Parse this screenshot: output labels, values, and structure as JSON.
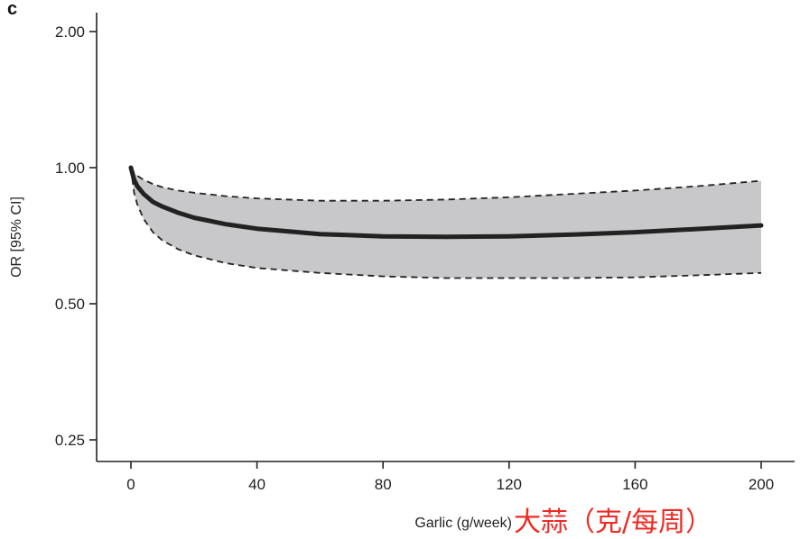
{
  "panel_label": "c",
  "annotation": "大蒜（克/每周）",
  "colors": {
    "line": "#222222",
    "band": "#c8c7c9",
    "ci": "#222222",
    "axis": "#222222",
    "annotation": "#ee2a24"
  },
  "chart_data": {
    "type": "line",
    "xlabel": "Garlic (g/week)",
    "ylabel": "OR [95% CI]",
    "y_scale": "log",
    "xlim": [
      -10,
      210
    ],
    "ylim": [
      0.23,
      2.2
    ],
    "x_ticks": [
      0,
      40,
      80,
      120,
      160,
      200
    ],
    "x_tick_labels": [
      "0",
      "40",
      "80",
      "120",
      "160",
      "200"
    ],
    "y_ticks": [
      0.25,
      0.5,
      1.0,
      2.0
    ],
    "y_tick_labels": [
      "0.25",
      "0.50",
      "1.00",
      "2.00"
    ],
    "grid": false,
    "legend": "none",
    "series": [
      {
        "role": "estimate",
        "x": [
          0,
          1,
          2,
          4,
          7,
          10,
          15,
          20,
          30,
          40,
          60,
          80,
          100,
          120,
          140,
          160,
          180,
          200
        ],
        "y": [
          1.0,
          0.94,
          0.91,
          0.875,
          0.84,
          0.82,
          0.795,
          0.775,
          0.75,
          0.733,
          0.713,
          0.705,
          0.703,
          0.705,
          0.711,
          0.72,
          0.732,
          0.745
        ]
      },
      {
        "role": "lower_ci",
        "x": [
          0,
          1,
          2,
          4,
          7,
          10,
          15,
          20,
          30,
          40,
          60,
          80,
          100,
          120,
          140,
          160,
          180,
          200
        ],
        "y": [
          1.0,
          0.88,
          0.83,
          0.77,
          0.72,
          0.69,
          0.66,
          0.64,
          0.615,
          0.6,
          0.585,
          0.575,
          0.57,
          0.57,
          0.57,
          0.572,
          0.578,
          0.585
        ]
      },
      {
        "role": "upper_ci",
        "x": [
          0,
          1,
          2,
          4,
          7,
          10,
          15,
          20,
          30,
          40,
          60,
          80,
          100,
          120,
          140,
          160,
          180,
          200
        ],
        "y": [
          1.0,
          0.975,
          0.96,
          0.94,
          0.92,
          0.905,
          0.89,
          0.88,
          0.865,
          0.855,
          0.845,
          0.845,
          0.85,
          0.86,
          0.875,
          0.89,
          0.91,
          0.935
        ]
      }
    ]
  }
}
